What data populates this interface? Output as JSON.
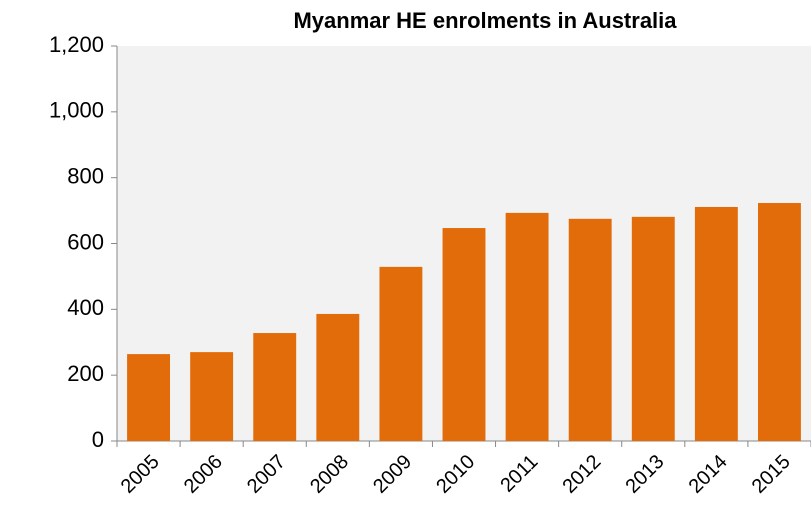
{
  "chart_data": {
    "type": "bar",
    "title": "Myanmar HE enrolments in Australia",
    "categories": [
      "2005",
      "2006",
      "2007",
      "2008",
      "2009",
      "2010",
      "2011",
      "2012",
      "2013",
      "2014",
      "2015"
    ],
    "values": [
      264,
      270,
      328,
      386,
      529,
      647,
      693,
      675,
      681,
      711,
      723
    ],
    "color": "#e36c0a",
    "ylim": [
      0,
      1200
    ],
    "yticks": [
      0,
      200,
      400,
      600,
      800,
      {
        "value": 1000,
        "label": "1,000"
      },
      {
        "value": 1200,
        "label": "1,200"
      }
    ],
    "grid": false
  }
}
